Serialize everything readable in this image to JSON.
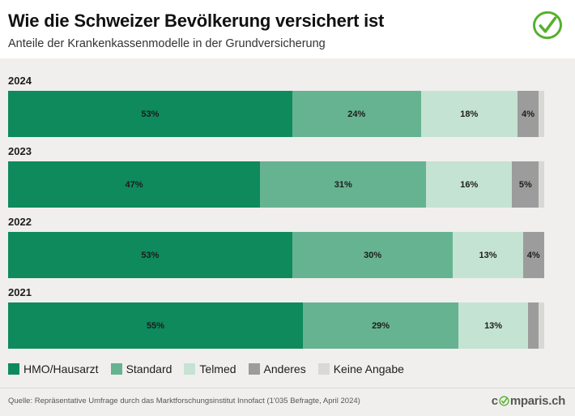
{
  "header": {
    "title": "Wie die Schweizer Bevölkerung versichert ist",
    "subtitle": "Anteile der Krankenkassenmodelle in der Grundversicherung"
  },
  "brand": {
    "check_color": "#55b02c",
    "wordmark_pre": "c",
    "wordmark_post": "mparis.ch"
  },
  "chart_data": {
    "type": "bar",
    "orientation": "horizontal-stacked",
    "categories": [
      "2024",
      "2023",
      "2022",
      "2021"
    ],
    "series": [
      {
        "name": "HMO/Hausarzt",
        "color": "#0e8a5d",
        "values": [
          53,
          47,
          53,
          55
        ]
      },
      {
        "name": "Standard",
        "color": "#66b391",
        "values": [
          24,
          31,
          30,
          29
        ]
      },
      {
        "name": "Telmed",
        "color": "#c5e3d3",
        "values": [
          18,
          16,
          13,
          13
        ]
      },
      {
        "name": "Anderes",
        "color": "#9c9c9c",
        "values": [
          4,
          5,
          4,
          2
        ]
      },
      {
        "name": "Keine Angabe",
        "color": "#d8d8d6",
        "values": [
          1,
          1,
          0,
          1
        ]
      }
    ],
    "label_threshold": 4,
    "label_suffix": "%",
    "xlim": [
      0,
      100
    ],
    "legend_position": "bottom",
    "grid": false
  },
  "footer": {
    "source": "Quelle: Repräsentative Umfrage durch das Marktforschungsinstitut Innofact (1'035 Befragte, April 2024)"
  }
}
